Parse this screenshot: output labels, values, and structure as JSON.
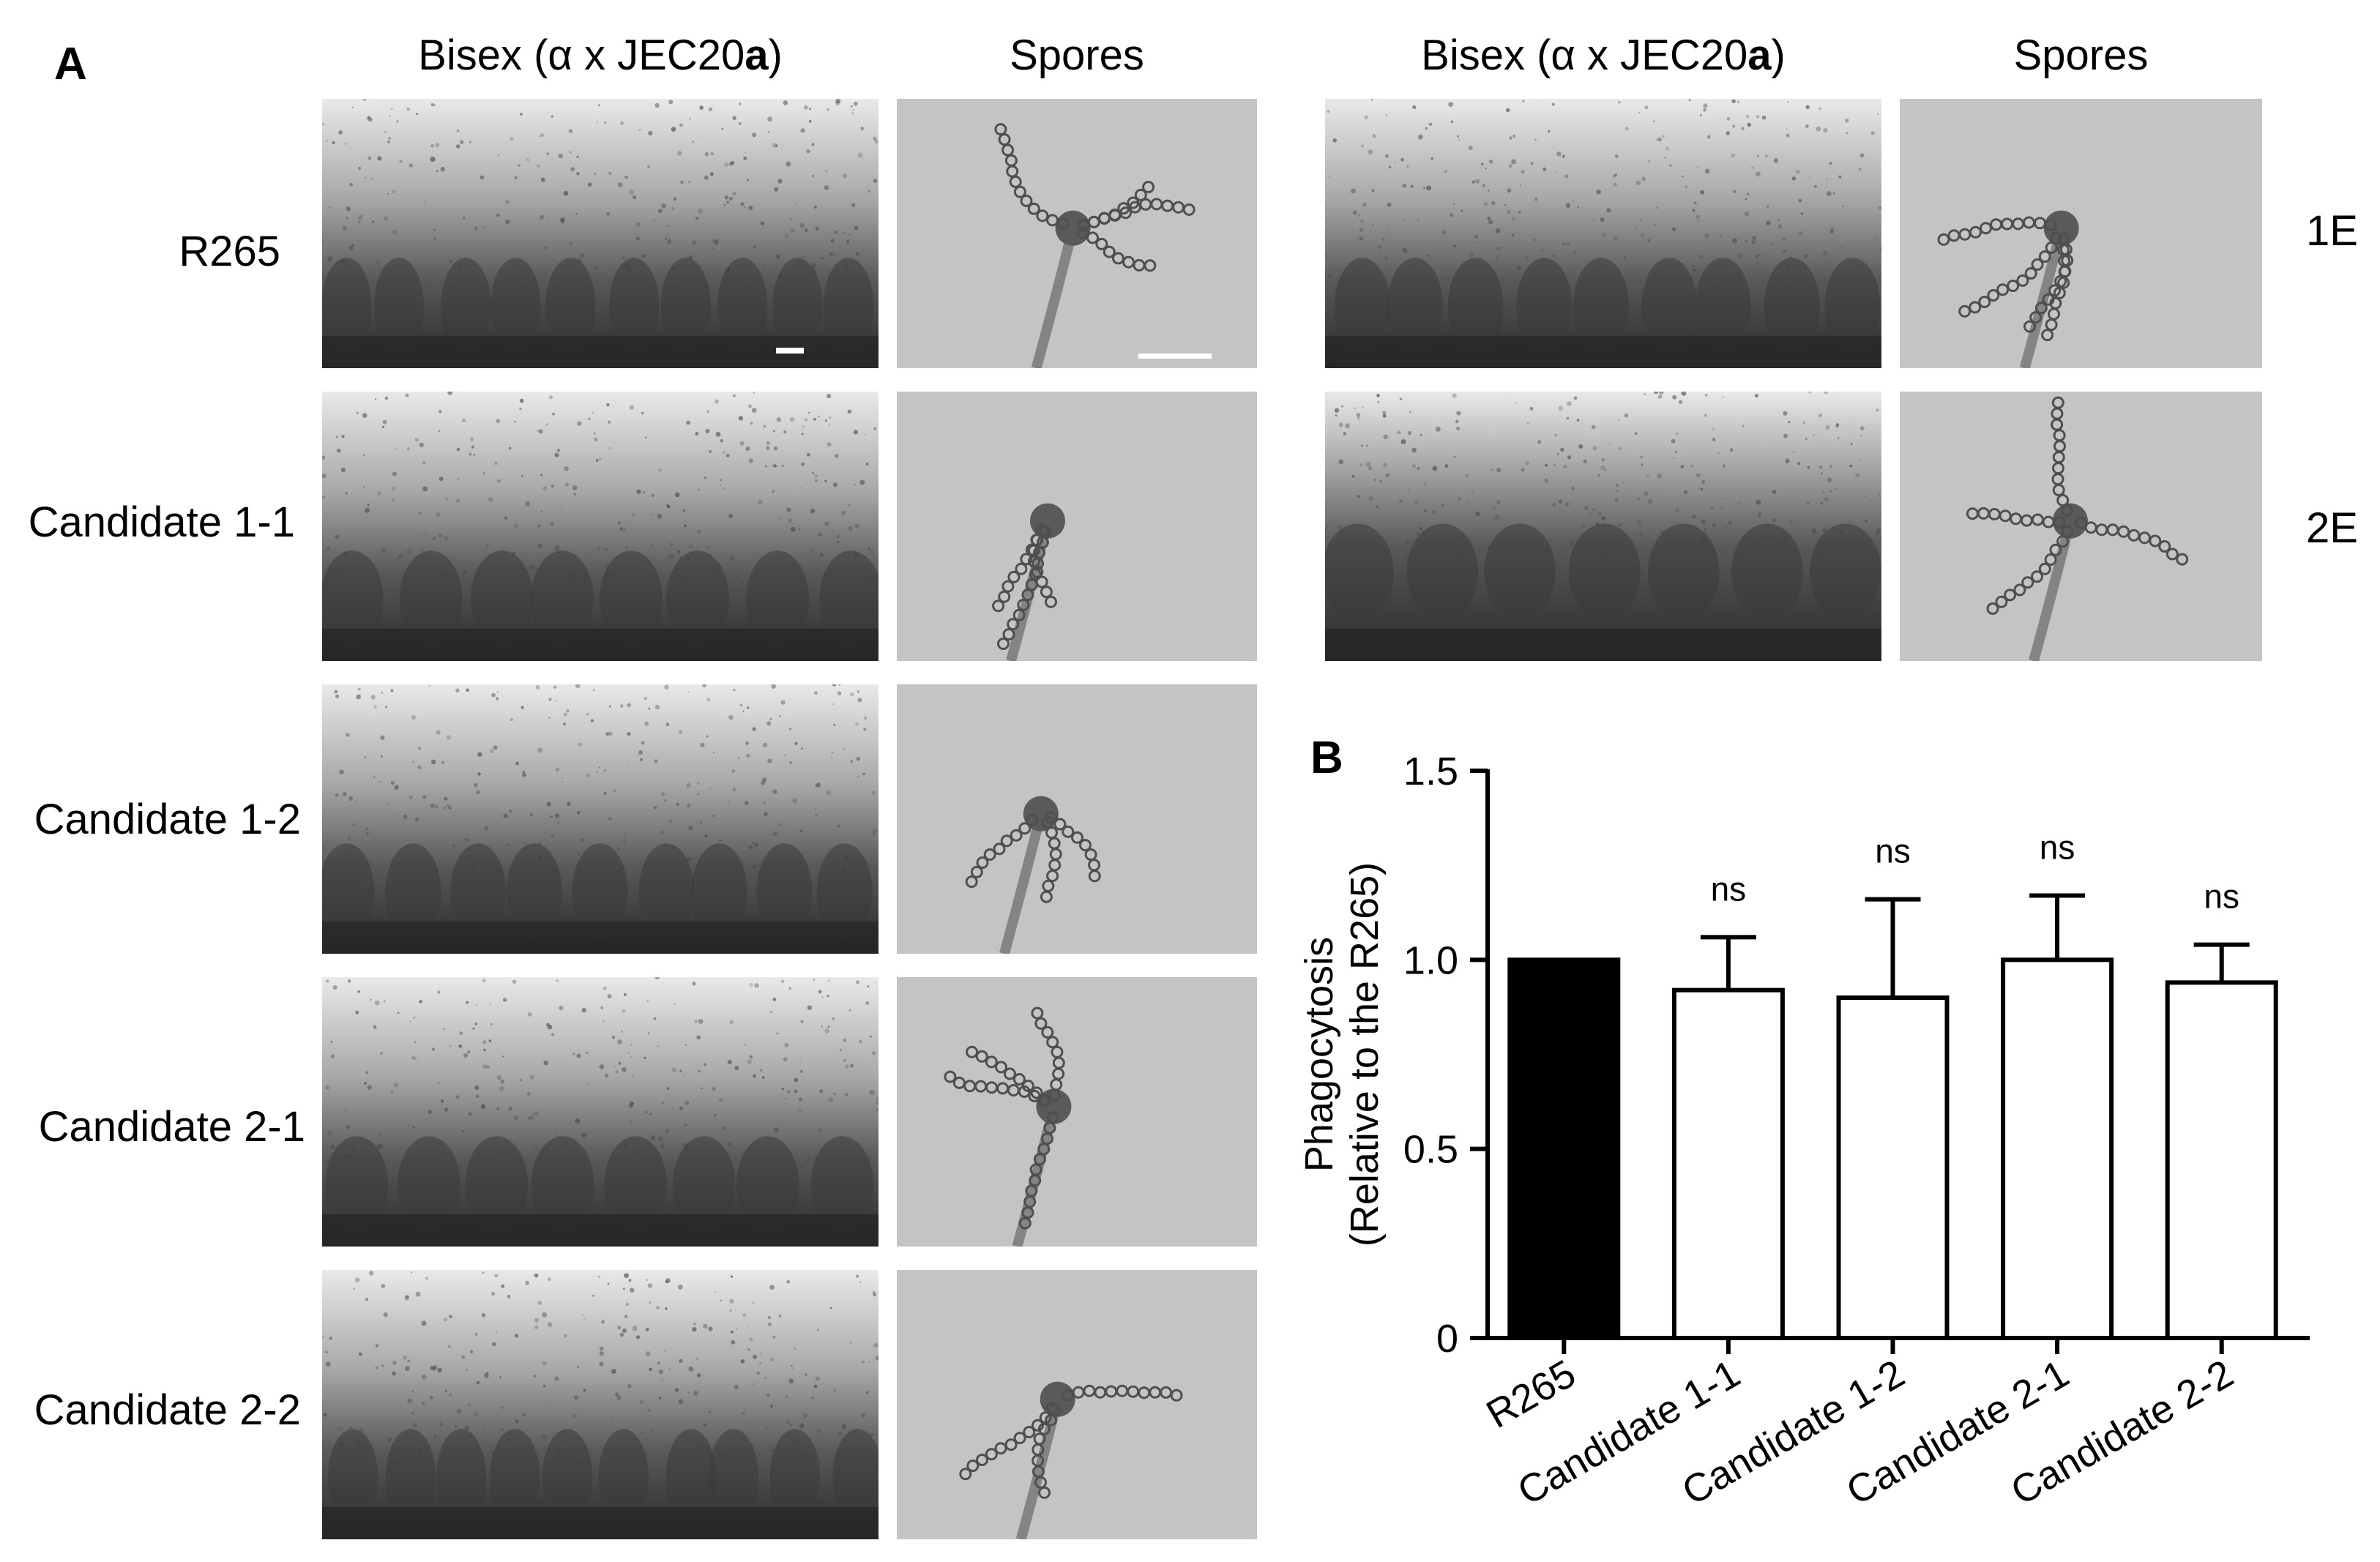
{
  "panel_a": {
    "letter": "A",
    "left_headers": {
      "prefix": "Bisex (α x JEC20",
      "bold": "a",
      "suffix": ")",
      "spores": "Spores"
    },
    "right_headers": {
      "prefix": "Bisex (α x JEC20",
      "bold": "a",
      "suffix": ")",
      "spores": "Spores"
    },
    "rows": [
      "R265",
      "Candidate 1-1",
      "Candidate 1-2",
      "Candidate 2-1",
      "Candidate 2-2"
    ],
    "right_rows": [
      "1E",
      "2E"
    ]
  },
  "panel_b": {
    "letter": "B"
  },
  "chart_data": {
    "type": "bar",
    "categories": [
      "R265",
      "Candidate 1-1",
      "Candidate 1-2",
      "Candidate 2-1",
      "Candidate 2-2"
    ],
    "values": [
      1.0,
      0.92,
      0.9,
      1.0,
      0.94
    ],
    "error_upper": [
      0.0,
      0.14,
      0.26,
      0.17,
      0.1
    ],
    "bar_colors": [
      "#000000",
      "#ffffff",
      "#ffffff",
      "#ffffff",
      "#ffffff"
    ],
    "annotations": [
      "",
      "ns",
      "ns",
      "ns",
      "ns"
    ],
    "ylabel_line1": "Phagocytosis",
    "ylabel_line2": "(Relative to the R265)",
    "ylim": [
      0,
      1.5
    ],
    "yticks": [
      0,
      0.5,
      1.0,
      1.5
    ],
    "ytick_labels": [
      "0",
      "0.5",
      "1.0",
      "1.5"
    ],
    "grid": false
  }
}
